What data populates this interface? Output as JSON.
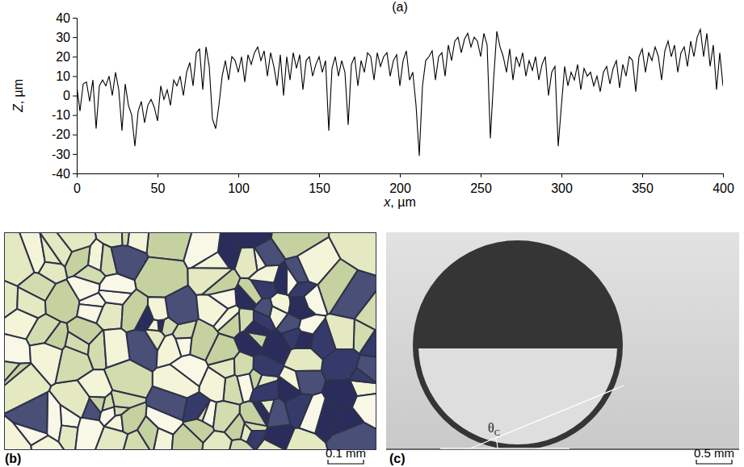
{
  "chart_data": {
    "type": "line",
    "title": "(a)",
    "x_label": "x, µm",
    "y_label": "Z, µm",
    "color": "#000000",
    "xlim": [
      0,
      400
    ],
    "xticks": [
      0,
      50,
      100,
      150,
      200,
      250,
      300,
      350,
      400
    ],
    "ylim": [
      -40,
      40
    ],
    "yticks": [
      -40,
      -30,
      -20,
      -10,
      0,
      10,
      20,
      30,
      40
    ],
    "x": [
      0,
      2,
      4,
      6,
      8,
      10,
      12,
      14,
      16,
      18,
      20,
      22,
      24,
      26,
      28,
      30,
      32,
      34,
      36,
      38,
      40,
      42,
      44,
      46,
      48,
      50,
      52,
      54,
      56,
      58,
      60,
      62,
      64,
      66,
      68,
      70,
      72,
      74,
      76,
      78,
      80,
      82,
      84,
      86,
      88,
      90,
      92,
      94,
      96,
      98,
      100,
      102,
      104,
      106,
      108,
      110,
      112,
      114,
      116,
      118,
      120,
      122,
      124,
      126,
      128,
      130,
      132,
      134,
      136,
      138,
      140,
      142,
      144,
      146,
      148,
      150,
      152,
      154,
      156,
      158,
      160,
      162,
      164,
      166,
      168,
      170,
      172,
      174,
      176,
      178,
      180,
      182,
      184,
      186,
      188,
      190,
      192,
      194,
      196,
      198,
      200,
      202,
      204,
      206,
      208,
      210,
      212,
      214,
      216,
      218,
      220,
      222,
      224,
      226,
      228,
      230,
      232,
      234,
      236,
      238,
      240,
      242,
      244,
      246,
      248,
      250,
      252,
      254,
      256,
      258,
      260,
      262,
      264,
      266,
      268,
      270,
      272,
      274,
      276,
      278,
      280,
      282,
      284,
      286,
      288,
      290,
      292,
      294,
      296,
      298,
      300,
      302,
      304,
      306,
      308,
      310,
      312,
      314,
      316,
      318,
      320,
      322,
      324,
      326,
      328,
      330,
      332,
      334,
      336,
      338,
      340,
      342,
      344,
      346,
      348,
      350,
      352,
      354,
      356,
      358,
      360,
      362,
      364,
      366,
      368,
      370,
      372,
      374,
      376,
      378,
      380,
      382,
      384,
      386,
      388,
      390,
      392,
      394,
      396,
      398,
      400
    ],
    "values": [
      5,
      -8,
      6,
      7,
      -3,
      8,
      -17,
      5,
      8,
      5,
      10,
      0,
      12,
      3,
      -18,
      6,
      -5,
      -10,
      -26,
      -8,
      -3,
      -14,
      -5,
      -2,
      -6,
      -13,
      5,
      -2,
      3,
      -5,
      8,
      5,
      10,
      0,
      12,
      17,
      5,
      22,
      24,
      3,
      25,
      15,
      -12,
      -17,
      -5,
      10,
      18,
      8,
      20,
      18,
      12,
      20,
      7,
      21,
      16,
      22,
      25,
      18,
      23,
      10,
      22,
      15,
      5,
      21,
      0,
      20,
      8,
      22,
      14,
      21,
      3,
      18,
      20,
      10,
      16,
      20,
      12,
      18,
      -18,
      14,
      20,
      10,
      18,
      12,
      -15,
      16,
      20,
      5,
      18,
      12,
      22,
      20,
      8,
      22,
      15,
      20,
      22,
      10,
      18,
      21,
      5,
      18,
      23,
      8,
      12,
      -5,
      -31,
      5,
      18,
      20,
      23,
      8,
      20,
      22,
      10,
      26,
      18,
      28,
      30,
      22,
      29,
      32,
      25,
      30,
      28,
      20,
      32,
      26,
      -22,
      8,
      33,
      25,
      20,
      12,
      24,
      8,
      20,
      15,
      22,
      10,
      18,
      13,
      20,
      8,
      16,
      20,
      0,
      12,
      15,
      -26,
      -5,
      15,
      5,
      12,
      8,
      16,
      3,
      14,
      10,
      12,
      5,
      10,
      2,
      12,
      15,
      6,
      14,
      18,
      4,
      16,
      10,
      20,
      18,
      2,
      20,
      24,
      12,
      22,
      18,
      25,
      20,
      8,
      23,
      28,
      20,
      26,
      12,
      22,
      25,
      15,
      28,
      20,
      30,
      34,
      20,
      32,
      15,
      26,
      3,
      22,
      5
    ]
  },
  "panels": {
    "b": {
      "letter": "(b)",
      "scale_bar": "0.1 mm"
    },
    "c": {
      "letter": "(c)",
      "scale_bar": "0.5 mm",
      "angle_symbol": "θ",
      "angle_subscript": "C"
    }
  }
}
